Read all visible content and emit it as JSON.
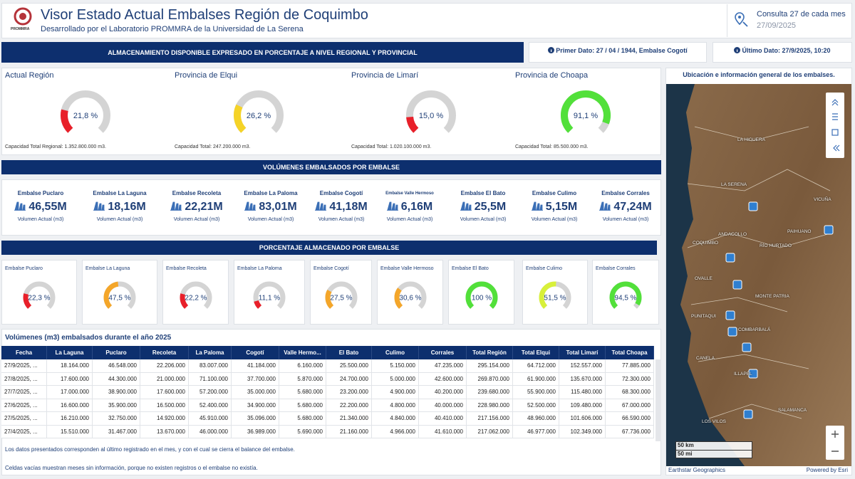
{
  "header": {
    "title": "Visor Estado Actual Embalses Región de Coquimbo",
    "subtitle": "Desarrollado por el Laboratorio PROMMRA de la Universidad de La Serena",
    "logo_text": "PROMMRA",
    "query_label": "Consulta 27 de cada mes",
    "query_date": "27/09/2025"
  },
  "info": {
    "banner": "ALMACENAMIENTO DISPONIBLE EXPRESADO EN PORCENTAJE A NIVEL REGIONAL Y PROVINCIAL",
    "first_data": "Primer Dato: 27 / 04 / 1944, Embalse Cogotí",
    "last_data": "Último Dato: 27/9/2025, 10:20"
  },
  "gauges": [
    {
      "title": "Actual Región",
      "value": 21.8,
      "value_label": "21,8 %",
      "capacity": "Capacidad Total Regional: 1.352.800.000 m3.",
      "color": "#e8202a"
    },
    {
      "title": "Provincia de Elqui",
      "value": 26.2,
      "value_label": "26,2 %",
      "capacity": "Capacidad Total: 247.200.000 m3.",
      "color": "#f5d327"
    },
    {
      "title": "Provincia de Limarí",
      "value": 15.0,
      "value_label": "15,0 %",
      "capacity": "Capacidad Total: 1.020.100.000 m3.",
      "color": "#e8202a"
    },
    {
      "title": "Provincia de Choapa",
      "value": 91.1,
      "value_label": "91,1 %",
      "capacity": "Capacidad Total: 85.500.000 m3.",
      "color": "#52e03a"
    }
  ],
  "volumes": {
    "banner": "VOLÚMENES EMBALSADOS POR EMBALSE",
    "unit_label": "Volumen Actual (m3)",
    "items": [
      {
        "name": "Embalse Puclaro",
        "value": "46,55M"
      },
      {
        "name": "Embalse La Laguna",
        "value": "18,16M"
      },
      {
        "name": "Embalse Recoleta",
        "value": "22,21M"
      },
      {
        "name": "Embalse La Paloma",
        "value": "83,01M"
      },
      {
        "name": "Embalse Cogotí",
        "value": "41,18M"
      },
      {
        "name": "Embalse Valle Hermoso",
        "value": "6,16M"
      },
      {
        "name": "Embalse El Bato",
        "value": "25,5M"
      },
      {
        "name": "Embalse Culimo",
        "value": "5,15M"
      },
      {
        "name": "Embalse Corrales",
        "value": "47,24M"
      }
    ]
  },
  "percentages": {
    "banner": "PORCENTAJE ALMACENADO POR EMBALSE",
    "items": [
      {
        "name": "Embalse Puclaro",
        "value": 22.3,
        "value_label": "22,3 %",
        "color": "#e8202a"
      },
      {
        "name": "Embalse La Laguna",
        "value": 47.5,
        "value_label": "47,5 %",
        "color": "#f4a62a"
      },
      {
        "name": "Embalse Recoleta",
        "value": 22.2,
        "value_label": "22,2 %",
        "color": "#e8202a"
      },
      {
        "name": "Embalse La Paloma",
        "value": 11.1,
        "value_label": "11,1 %",
        "color": "#e8202a"
      },
      {
        "name": "Embalse Cogotí",
        "value": 27.5,
        "value_label": "27,5 %",
        "color": "#f4a62a"
      },
      {
        "name": "Embalse Valle Hermoso",
        "value": 30.6,
        "value_label": "30,6 %",
        "color": "#f4a62a"
      },
      {
        "name": "Embalse El Bato",
        "value": 100,
        "value_label": "100 %",
        "color": "#52e03a"
      },
      {
        "name": "Embalse Culimo",
        "value": 51.5,
        "value_label": "51,5 %",
        "color": "#d8f03a"
      },
      {
        "name": "Embalse Corrales",
        "value": 94.5,
        "value_label": "94,5 %",
        "color": "#52e03a"
      }
    ]
  },
  "table": {
    "title": "Volúmenes (m3) embalsados durante el año 2025",
    "columns": [
      "Fecha",
      "La Laguna",
      "Puclaro",
      "Recoleta",
      "La Paloma",
      "Cogotí",
      "Valle Hermo...",
      "El Bato",
      "Culimo",
      "Corrales",
      "Total Región",
      "Total Elqui",
      "Total Limarí",
      "Total Choapa"
    ],
    "rows": [
      [
        "27/9/2025, ...",
        "18.164.000",
        "46.548.000",
        "22.206.000",
        "83.007.000",
        "41.184.000",
        "6.160.000",
        "25.500.000",
        "5.150.000",
        "47.235.000",
        "295.154.000",
        "64.712.000",
        "152.557.000",
        "77.885.000"
      ],
      [
        "27/8/2025, ...",
        "17.600.000",
        "44.300.000",
        "21.000.000",
        "71.100.000",
        "37.700.000",
        "5.870.000",
        "24.700.000",
        "5.000.000",
        "42.600.000",
        "269.870.000",
        "61.900.000",
        "135.670.000",
        "72.300.000"
      ],
      [
        "27/7/2025, ...",
        "17.000.000",
        "38.900.000",
        "17.600.000",
        "57.200.000",
        "35.000.000",
        "5.680.000",
        "23.200.000",
        "4.900.000",
        "40.200.000",
        "239.680.000",
        "55.900.000",
        "115.480.000",
        "68.300.000"
      ],
      [
        "27/6/2025, ...",
        "16.600.000",
        "35.900.000",
        "16.500.000",
        "52.400.000",
        "34.900.000",
        "5.680.000",
        "22.200.000",
        "4.800.000",
        "40.000.000",
        "228.980.000",
        "52.500.000",
        "109.480.000",
        "67.000.000"
      ],
      [
        "27/5/2025, ...",
        "16.210.000",
        "32.750.000",
        "14.920.000",
        "45.910.000",
        "35.096.000",
        "5.680.000",
        "21.340.000",
        "4.840.000",
        "40.410.000",
        "217.156.000",
        "48.960.000",
        "101.606.000",
        "66.590.000"
      ],
      [
        "27/4/2025, ...",
        "15.510.000",
        "31.467.000",
        "13.670.000",
        "46.000.000",
        "36.989.000",
        "5.690.000",
        "21.160.000",
        "4.966.000",
        "41.610.000",
        "217.062.000",
        "46.977.000",
        "102.349.000",
        "67.736.000"
      ]
    ]
  },
  "notes": [
    "Los datos presentados corresponden al último registrado en el mes, y con el cual se cierra el balance del embalse.",
    "Celdas vacías muestran meses sin información, porque no existen registros o el embalse no existía."
  ],
  "map": {
    "title": "Ubicación e información general de los embalses.",
    "labels": [
      "LA HIGUERA",
      "LA SERENA",
      "VICUÑA",
      "ANDACOLLO",
      "PAIHUANO",
      "COQUIMBO",
      "RÍO HURTADO",
      "OVALLE",
      "MONTE PATRIA",
      "PUNITAQUI",
      "COMBARBALÁ",
      "CANELA",
      "ILLAPEL",
      "SALAMANCA",
      "LOS VILOS"
    ],
    "scale_km": "50 km",
    "scale_mi": "50 mi",
    "attribution": "Earthstar Geographics",
    "powered": "Powered by Esri"
  }
}
